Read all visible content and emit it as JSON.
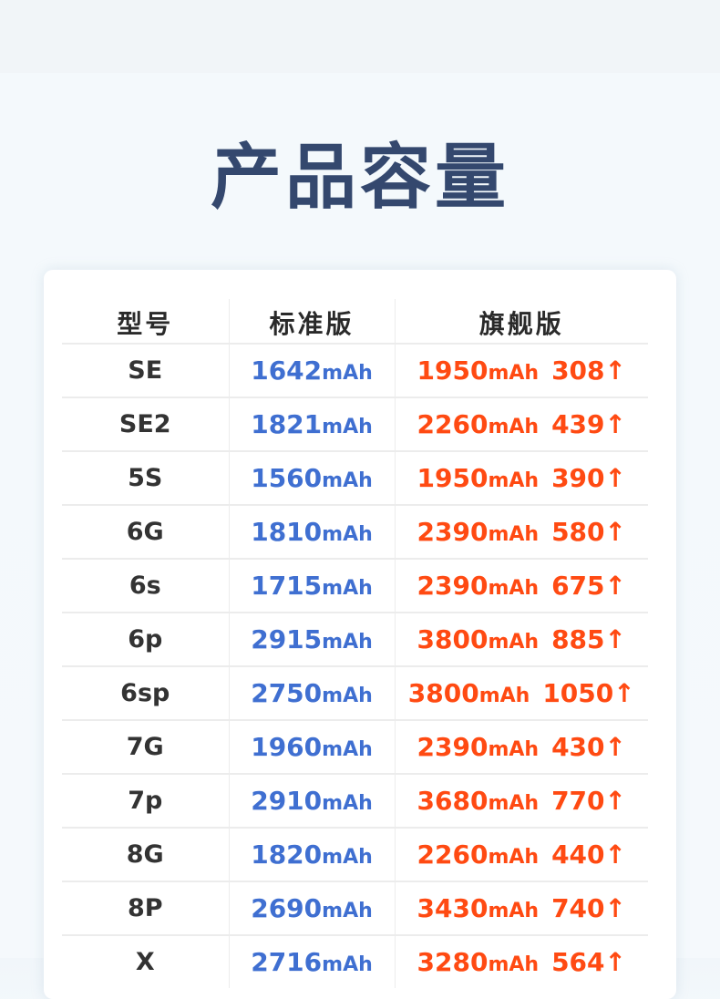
{
  "title": "产品容量",
  "table": {
    "headers": [
      "型号",
      "标准版",
      "旗舰版"
    ],
    "unit": "mAh",
    "arrow": "↑",
    "rows": [
      {
        "model": "SE",
        "standard": "1642",
        "flagship": "1950",
        "increase": "308"
      },
      {
        "model": "SE2",
        "standard": "1821",
        "flagship": "2260",
        "increase": "439"
      },
      {
        "model": "5S",
        "standard": "1560",
        "flagship": "1950",
        "increase": "390"
      },
      {
        "model": "6G",
        "standard": "1810",
        "flagship": "2390",
        "increase": "580"
      },
      {
        "model": "6s",
        "standard": "1715",
        "flagship": "2390",
        "increase": "675"
      },
      {
        "model": "6p",
        "standard": "2915",
        "flagship": "3800",
        "increase": "885"
      },
      {
        "model": "6sp",
        "standard": "2750",
        "flagship": "3800",
        "increase": "1050"
      },
      {
        "model": "7G",
        "standard": "1960",
        "flagship": "2390",
        "increase": "430"
      },
      {
        "model": "7p",
        "standard": "2910",
        "flagship": "3680",
        "increase": "770"
      },
      {
        "model": "8G",
        "standard": "1820",
        "flagship": "2260",
        "increase": "440"
      },
      {
        "model": "8P",
        "standard": "2690",
        "flagship": "3430",
        "increase": "740"
      },
      {
        "model": "X",
        "standard": "2716",
        "flagship": "3280",
        "increase": "564"
      }
    ]
  },
  "colors": {
    "title": "#34486e",
    "standard": "#3f6fd1",
    "flagship": "#ff4a12"
  }
}
